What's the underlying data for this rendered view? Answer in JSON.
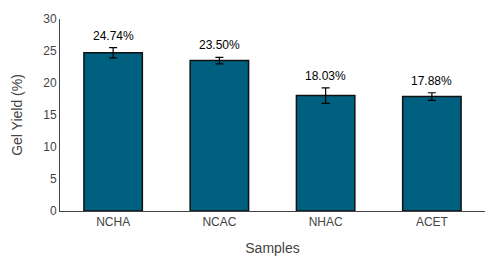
{
  "chart_data": {
    "type": "bar",
    "categories": [
      "NCHA",
      "NCAC",
      "NHAC",
      "ACET"
    ],
    "values": [
      24.74,
      23.5,
      18.03,
      17.88
    ],
    "errors": [
      0.8,
      0.5,
      1.2,
      0.6
    ],
    "data_labels": true,
    "value_labels": [
      "24.74%",
      "23.50%",
      "18.03%",
      "17.88%"
    ],
    "color": "#006080",
    "xlabel": "Samples",
    "ylabel": "Gel Yield (%)",
    "ylim": [
      0,
      30
    ],
    "yticks": [
      0,
      5,
      10,
      15,
      20,
      25,
      30
    ],
    "grid": false
  }
}
